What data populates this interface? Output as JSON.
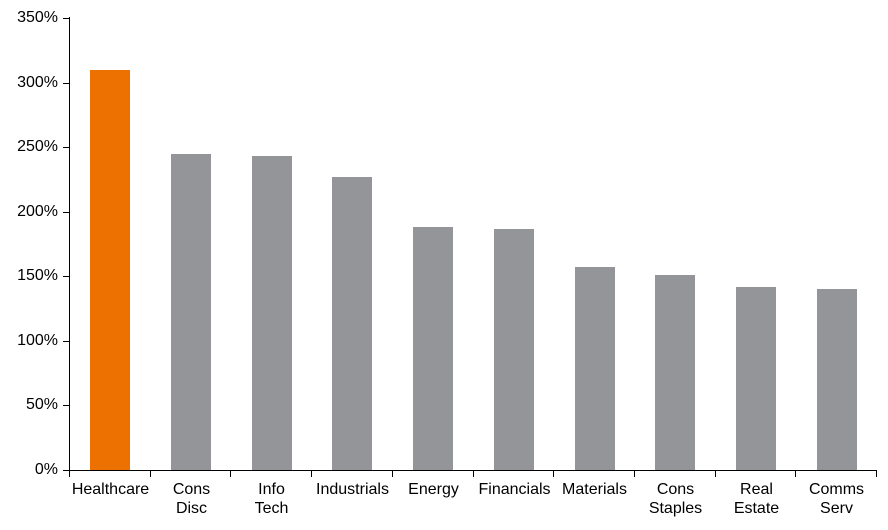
{
  "chart_data": {
    "type": "bar",
    "categories": [
      "Healthcare",
      "Cons Disc",
      "Info Tech",
      "Industrials",
      "Energy",
      "Financials",
      "Materials",
      "Cons Staples",
      "Real Estate",
      "Comms Serv"
    ],
    "values": [
      310,
      245,
      243,
      227,
      188,
      187,
      157,
      151,
      142,
      140
    ],
    "unit": "%",
    "title": "",
    "xlabel": "",
    "ylabel": "",
    "ylim": [
      0,
      350
    ],
    "ytick_step": 50,
    "ytick_labels": [
      "0%",
      "50%",
      "100%",
      "150%",
      "200%",
      "250%",
      "300%",
      "350%"
    ],
    "grid": false,
    "legend": "none",
    "bar_color": "#939598",
    "highlight_index": 0,
    "highlight_color": "#ED7100",
    "axis_color": "#000000",
    "text_color": "#000000",
    "background": "#FFFFFF"
  }
}
